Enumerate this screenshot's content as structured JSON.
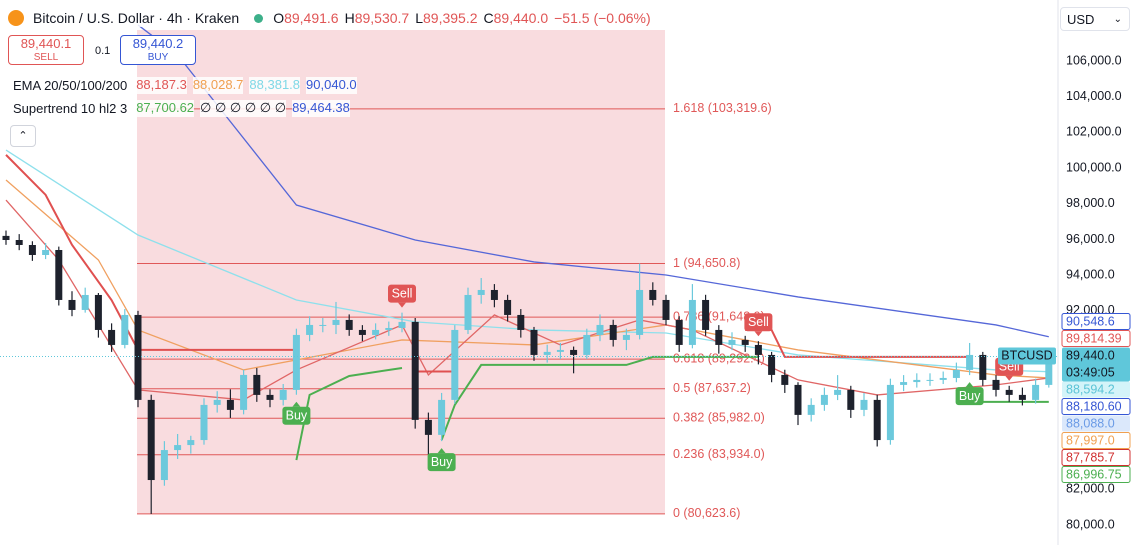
{
  "header": {
    "title": "Bitcoin / U.S. Dollar · 4h · Kraken",
    "ohlc": [
      {
        "key": "O",
        "value": "89,491.6"
      },
      {
        "key": "H",
        "value": "89,530.7"
      },
      {
        "key": "L",
        "value": "89,395.2"
      },
      {
        "key": "C",
        "value": "89,440.0"
      }
    ],
    "change": "−51.5 (−0.06%)",
    "sell_price": "89,440.1",
    "sell_label": "SELL",
    "spread": "0.1",
    "buy_price": "89,440.2",
    "buy_label": "BUY",
    "currency": "USD"
  },
  "indicators": {
    "ema": {
      "title": "EMA 20/50/100/200",
      "values": [
        {
          "text": "88,187.3",
          "color": "#e05555"
        },
        {
          "text": "88,028.7",
          "color": "#f0a050"
        },
        {
          "text": "88,381.8",
          "color": "#7fd8e6"
        },
        {
          "text": "90,040.0",
          "color": "#3556d4"
        }
      ]
    },
    "supertrend": {
      "title": "Supertrend 10 hl2 3",
      "values": [
        {
          "text": "87,700.62",
          "color": "#4caf50"
        },
        {
          "text": "∅ ∅ ∅ ∅ ∅ ∅",
          "color": "#131722"
        },
        {
          "text": "89,464.38",
          "color": "#3556d4"
        }
      ]
    }
  },
  "chart_data": {
    "type": "candlestick",
    "up_color": "#6cc9dc",
    "down_color": "#1e222d",
    "ylim": [
      79160,
      109418
    ],
    "yticks": [
      {
        "value": 106000,
        "label": "106,000.0"
      },
      {
        "value": 104000,
        "label": "104,000.0"
      },
      {
        "value": 102000,
        "label": "102,000.0"
      },
      {
        "value": 100000,
        "label": "100,000.0"
      },
      {
        "value": 98000,
        "label": "98,000.0"
      },
      {
        "value": 96000,
        "label": "96,000.0"
      },
      {
        "value": 94000,
        "label": "94,000.0"
      },
      {
        "value": 92000,
        "label": "92,000.0"
      },
      {
        "value": 82000,
        "label": "82,000.0"
      },
      {
        "value": 80000,
        "label": "80,000.0"
      }
    ],
    "open": [
      96200,
      95970,
      95690,
      95130,
      95410,
      92610,
      92050,
      92890,
      90930,
      90090,
      91770,
      87010,
      82520,
      84200,
      84480,
      84760,
      86730,
      87010,
      86450,
      88410,
      87290,
      87010,
      87570,
      90650,
      91210,
      91210,
      91490,
      90930,
      90650,
      90930,
      91040,
      91380,
      85890,
      85050,
      87010,
      90930,
      92890,
      93170,
      92610,
      91770,
      90930,
      89530,
      89700,
      89810,
      89530,
      90650,
      91210,
      90370,
      90650,
      93170,
      92610,
      91490,
      90090,
      92610,
      90930,
      90090,
      90370,
      90090,
      89530,
      88410,
      87850,
      86170,
      86730,
      87290,
      87570,
      86450,
      87010,
      84760,
      87850,
      88010,
      88130,
      88130,
      88240,
      88690,
      89530,
      88130,
      87570,
      87290,
      87010,
      87850
    ],
    "high": [
      96500,
      96300,
      95900,
      95800,
      95600,
      93100,
      93300,
      93000,
      91300,
      92100,
      92000,
      87300,
      84700,
      85100,
      85000,
      87100,
      87500,
      87600,
      88700,
      88800,
      87600,
      87900,
      91000,
      91700,
      91600,
      92500,
      91800,
      91200,
      91300,
      91400,
      91900,
      91600,
      86300,
      87400,
      91200,
      93300,
      93840,
      93500,
      92900,
      92100,
      91100,
      90100,
      90200,
      90000,
      91000,
      91800,
      91500,
      91000,
      94650,
      93600,
      92900,
      91700,
      93500,
      92900,
      91200,
      90800,
      90600,
      90300,
      89700,
      88700,
      88000,
      87100,
      87700,
      88400,
      87800,
      87400,
      87300,
      88200,
      88400,
      88500,
      88500,
      88600,
      89100,
      90200,
      89700,
      88400,
      87800,
      87700,
      88200,
      89530
    ],
    "low": [
      95700,
      95400,
      94800,
      94900,
      92300,
      91700,
      91900,
      90500,
      89700,
      89900,
      86600,
      80620,
      82200,
      83700,
      84000,
      84500,
      86300,
      86000,
      86200,
      86900,
      86600,
      86700,
      87300,
      90300,
      90800,
      90700,
      90600,
      90300,
      90400,
      90600,
      90800,
      85400,
      83930,
      84700,
      86800,
      90700,
      92400,
      92200,
      91400,
      90500,
      89200,
      89100,
      89300,
      88500,
      89300,
      90300,
      90000,
      89800,
      90400,
      92300,
      91200,
      89700,
      89900,
      90600,
      89600,
      89800,
      89700,
      89000,
      88000,
      87400,
      85600,
      85800,
      86400,
      87000,
      86000,
      86100,
      84400,
      84500,
      87500,
      87700,
      87800,
      87900,
      88000,
      88400,
      87800,
      87200,
      86900,
      86700,
      86800,
      87700
    ],
    "close": [
      95970,
      95690,
      95130,
      95410,
      92610,
      92050,
      92890,
      90930,
      90090,
      91770,
      87010,
      82520,
      84200,
      84480,
      84760,
      86730,
      87010,
      86450,
      88410,
      87290,
      87010,
      87570,
      90650,
      91210,
      91210,
      91490,
      90930,
      90650,
      90930,
      91040,
      91380,
      85890,
      85050,
      87010,
      90930,
      92890,
      93170,
      92610,
      91770,
      90930,
      89530,
      89700,
      89810,
      89530,
      90650,
      91210,
      90370,
      90650,
      93170,
      92610,
      91490,
      90090,
      92610,
      90930,
      90090,
      90370,
      90090,
      89530,
      88410,
      87850,
      86170,
      86730,
      87290,
      87570,
      86450,
      87010,
      84760,
      87850,
      88010,
      88130,
      88130,
      88240,
      88690,
      89530,
      88130,
      87570,
      87290,
      87010,
      87850,
      89440
    ],
    "lines": [
      {
        "color": "#5567d8",
        "x": [
          10,
          13,
          22,
          31,
          40,
          50,
          60,
          75,
          79
        ],
        "values": [
          108020,
          106340,
          97930,
          95970,
          94740,
          94010,
          92780,
          91210,
          90550
        ]
      },
      {
        "color": "#8ee0ec",
        "x": [
          0,
          10,
          22,
          31,
          40,
          50,
          60,
          75,
          79
        ],
        "values": [
          101010,
          96250,
          92610,
          91380,
          90930,
          90760,
          89530,
          88690,
          88590
        ]
      },
      {
        "color": "#f0a060",
        "x": [
          0,
          7,
          10,
          18,
          30,
          40,
          50,
          60,
          75,
          79
        ],
        "values": [
          99330,
          94850,
          90930,
          88690,
          90370,
          90090,
          91210,
          89810,
          88410,
          88240
        ]
      },
      {
        "color": "#e06666",
        "x": [
          0,
          4,
          10,
          18,
          22,
          30,
          32,
          37,
          42,
          48,
          52,
          60,
          66,
          75,
          79
        ],
        "values": [
          98210,
          94850,
          87570,
          87010,
          88690,
          91210,
          88410,
          91770,
          90090,
          91490,
          90930,
          88130,
          87290,
          87850,
          88240
        ]
      }
    ],
    "supertrend": [
      {
        "color": "#4caf50",
        "x": [
          22,
          23,
          26,
          30,
          31,
          33,
          34,
          36,
          47,
          49,
          57,
          58,
          73,
          74,
          77,
          79
        ],
        "values": [
          83640,
          87290,
          88350,
          88800,
          null,
          84760,
          86730,
          88970,
          88970,
          89420,
          89420,
          null,
          86900,
          86900,
          86900,
          86900
        ]
      },
      {
        "color": "#e05050",
        "x": [
          0,
          3,
          5,
          8,
          10,
          22,
          23,
          31,
          34,
          35,
          56,
          58,
          59,
          73
        ],
        "values": [
          100740,
          98500,
          95700,
          92600,
          89810,
          89810,
          null,
          88600,
          88600,
          null,
          90930,
          90930,
          89420,
          89420
        ]
      }
    ],
    "fib_levels": [
      {
        "value": 103319.6,
        "label": "1.618 (103,319.6)"
      },
      {
        "value": 94650.8,
        "label": "1 (94,650.8)"
      },
      {
        "value": 91648.9,
        "label": "0.786 (91,648.9)"
      },
      {
        "value": 89292.4,
        "label": "0.618 (89,292.4)"
      },
      {
        "value": 87637.2,
        "label": "0.5 (87,637.2)"
      },
      {
        "value": 85982.0,
        "label": "0.382 (85,982.0)"
      },
      {
        "value": 83934.0,
        "label": "0.236 (83,934.0)"
      },
      {
        "value": 80623.6,
        "label": "0 (80,623.6)"
      }
    ],
    "fib_color": "#e05858",
    "signals": [
      {
        "label": "Buy",
        "index": 22
      },
      {
        "label": "Sell",
        "index": 30
      },
      {
        "label": "Buy",
        "index": 33
      },
      {
        "label": "Sell",
        "index": 57
      },
      {
        "label": "Buy",
        "index": 73
      },
      {
        "label": "Sell",
        "index": 76
      }
    ],
    "price_tags": [
      {
        "value": 90548.6,
        "label": "90,548.6",
        "style": "outline",
        "color": "#3556d4"
      },
      {
        "value": 89814.39,
        "label": "89,814.39",
        "style": "outline",
        "color": "#e05555"
      },
      {
        "value": 89440.0,
        "label": "89,440.0",
        "sublabel": "03:49:05",
        "name": "BTCUSD",
        "style": "filled",
        "color": "#131722",
        "fill": "#5fc7da"
      },
      {
        "value": 88594.2,
        "label": "88,594.2",
        "style": "filled",
        "color": "#5ac3d6",
        "fill": "#d4f4f9"
      },
      {
        "value": 88180.6,
        "label": "88,180.60",
        "style": "outline",
        "color": "#3556d4"
      },
      {
        "value": 88088.0,
        "label": "88,088.0",
        "style": "filled",
        "color": "#6b9be6",
        "fill": "#dbe8fb"
      },
      {
        "value": 87997.0,
        "label": "87,997.0",
        "style": "outline",
        "color": "#f0a050"
      },
      {
        "value": 87785.7,
        "label": "87,785.7",
        "style": "outline",
        "color": "#d03030"
      },
      {
        "value": 86996.75,
        "label": "86,996.75",
        "style": "outline",
        "color": "#4caf50"
      }
    ]
  }
}
